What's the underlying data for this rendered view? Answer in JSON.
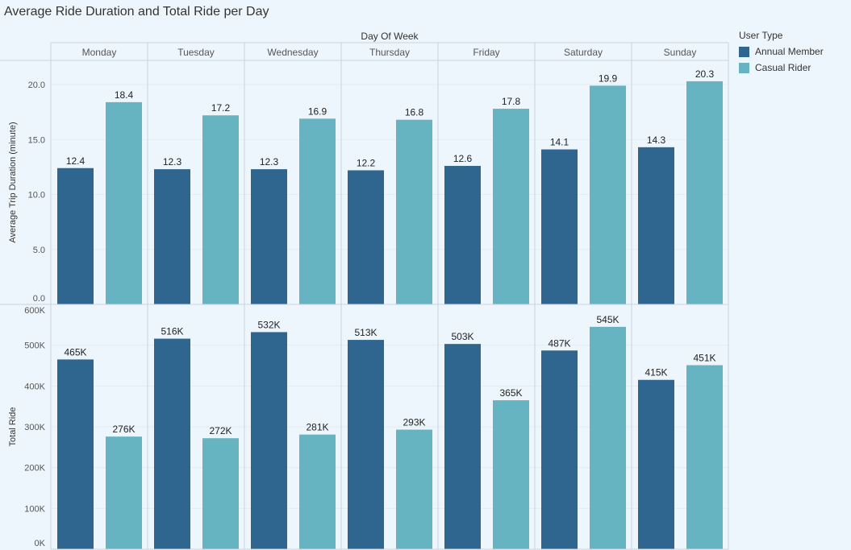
{
  "title": "Average Ride Duration and Total Ride per Day",
  "legend": {
    "title": "User Type",
    "items": [
      {
        "label": "Annual Member",
        "color": "#2e6690"
      },
      {
        "label": "Casual Rider",
        "color": "#66b4c2"
      }
    ]
  },
  "chart_data": [
    {
      "type": "bar",
      "title": "Average Ride Duration and Total Ride per Day",
      "column_header": "Day Of Week",
      "categories": [
        "Monday",
        "Tuesday",
        "Wednesday",
        "Thursday",
        "Friday",
        "Saturday",
        "Sunday"
      ],
      "ylabel": "Average Trip Duration (minute)",
      "ylim": [
        0,
        22.2
      ],
      "yticks": [
        "0.0",
        "5.0",
        "10.0",
        "15.0",
        "20.0"
      ],
      "ytick_values": [
        0,
        5,
        10,
        15,
        20
      ],
      "series": [
        {
          "name": "Annual Member",
          "values": [
            12.4,
            12.3,
            12.3,
            12.2,
            12.6,
            14.1,
            14.3
          ],
          "labels": [
            "12.4",
            "12.3",
            "12.3",
            "12.2",
            "12.6",
            "14.1",
            "14.3"
          ],
          "color": "#2e6690"
        },
        {
          "name": "Casual Rider",
          "values": [
            18.4,
            17.2,
            16.9,
            16.8,
            17.8,
            19.9,
            20.3
          ],
          "labels": [
            "18.4",
            "17.2",
            "16.9",
            "16.8",
            "17.8",
            "19.9",
            "20.3"
          ],
          "color": "#66b4c2"
        }
      ],
      "grid": true
    },
    {
      "type": "bar",
      "categories": [
        "Monday",
        "Tuesday",
        "Wednesday",
        "Thursday",
        "Friday",
        "Saturday",
        "Sunday"
      ],
      "ylabel": "Total Ride",
      "ylim": [
        0,
        600000
      ],
      "yticks": [
        "0K",
        "100K",
        "200K",
        "300K",
        "400K",
        "500K",
        "600K"
      ],
      "ytick_values": [
        0,
        100000,
        200000,
        300000,
        400000,
        500000,
        600000
      ],
      "series": [
        {
          "name": "Annual Member",
          "values": [
            465000,
            516000,
            532000,
            513000,
            503000,
            487000,
            415000
          ],
          "labels": [
            "465K",
            "516K",
            "532K",
            "513K",
            "503K",
            "487K",
            "415K"
          ],
          "color": "#2e6690"
        },
        {
          "name": "Casual Rider",
          "values": [
            276000,
            272000,
            281000,
            293000,
            365000,
            545000,
            451000
          ],
          "labels": [
            "276K",
            "272K",
            "281K",
            "293K",
            "365K",
            "545K",
            "451K"
          ],
          "color": "#66b4c2"
        }
      ],
      "grid": true
    }
  ]
}
